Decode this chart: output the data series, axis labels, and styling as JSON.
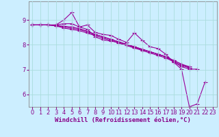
{
  "background_color": "#cceeff",
  "grid_color": "#aadddd",
  "line_color": "#990099",
  "marker": "+",
  "markersize": 4,
  "linewidth": 0.8,
  "xlabel": "Windchill (Refroidissement éolien,°C)",
  "xlabel_fontsize": 6.5,
  "tick_fontsize": 6,
  "xlim": [
    -0.5,
    23.5
  ],
  "ylim": [
    5.5,
    9.75
  ],
  "yticks": [
    6,
    7,
    8,
    9
  ],
  "xticks": [
    0,
    1,
    2,
    3,
    4,
    5,
    6,
    7,
    8,
    9,
    10,
    11,
    12,
    13,
    14,
    15,
    16,
    17,
    18,
    19,
    20,
    21,
    22,
    23
  ],
  "series": [
    [
      8.8,
      8.8,
      8.8,
      8.8,
      9.0,
      9.3,
      8.72,
      8.8,
      8.5,
      8.42,
      8.38,
      8.22,
      8.1,
      8.48,
      8.18,
      7.92,
      7.85,
      7.62,
      7.3,
      7.02,
      5.5,
      5.62,
      6.5,
      null
    ],
    [
      8.8,
      8.8,
      8.8,
      8.8,
      8.85,
      8.85,
      8.72,
      8.62,
      8.32,
      8.2,
      8.15,
      8.1,
      8.0,
      7.9,
      7.8,
      7.72,
      7.62,
      7.52,
      7.32,
      7.12,
      7.02,
      7.02,
      null,
      null
    ],
    [
      8.8,
      8.8,
      8.8,
      8.78,
      8.75,
      8.72,
      8.65,
      8.55,
      8.42,
      8.32,
      8.22,
      8.12,
      8.02,
      7.92,
      7.82,
      7.72,
      7.62,
      7.52,
      7.37,
      7.22,
      7.07,
      null,
      null,
      null
    ],
    [
      8.8,
      8.8,
      8.8,
      8.77,
      8.72,
      8.67,
      8.62,
      8.52,
      8.42,
      8.32,
      8.22,
      8.12,
      8.02,
      7.92,
      7.82,
      7.72,
      7.62,
      7.52,
      7.37,
      7.22,
      7.12,
      null,
      null,
      null
    ],
    [
      8.8,
      8.8,
      8.8,
      8.76,
      8.68,
      8.62,
      8.57,
      8.47,
      8.37,
      8.27,
      8.17,
      8.07,
      7.97,
      7.87,
      7.77,
      7.67,
      7.57,
      7.47,
      7.32,
      7.17,
      7.07,
      null,
      null,
      null
    ]
  ]
}
